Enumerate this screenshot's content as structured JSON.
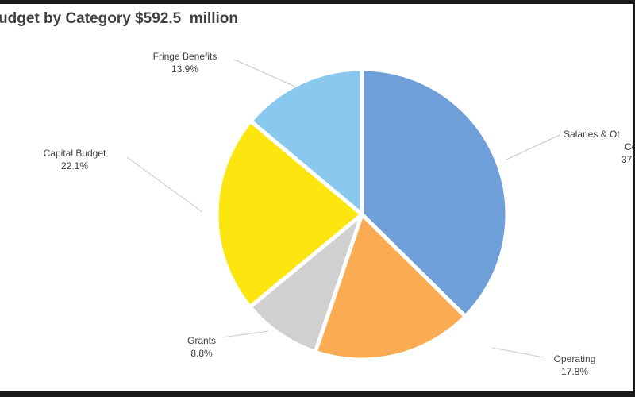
{
  "chart_data": {
    "type": "pie",
    "title": "udget by Category $592.5  million",
    "slices": [
      {
        "label_lines": [
          "Salaries & Ot",
          "Co"
        ],
        "pct_label": "37",
        "value": 37.4,
        "color": "#6f9fd8"
      },
      {
        "label_lines": [
          "Operating"
        ],
        "pct_label": "17.8%",
        "value": 17.8,
        "color": "#fbac52"
      },
      {
        "label_lines": [
          "Grants"
        ],
        "pct_label": "8.8%",
        "value": 8.8,
        "color": "#d0d0d0"
      },
      {
        "label_lines": [
          "Capital Budget"
        ],
        "pct_label": "22.1%",
        "value": 22.1,
        "color": "#fde610"
      },
      {
        "label_lines": [
          "Fringe Benefits"
        ],
        "pct_label": "13.9%",
        "value": 13.9,
        "color": "#8ac9ef"
      }
    ]
  }
}
